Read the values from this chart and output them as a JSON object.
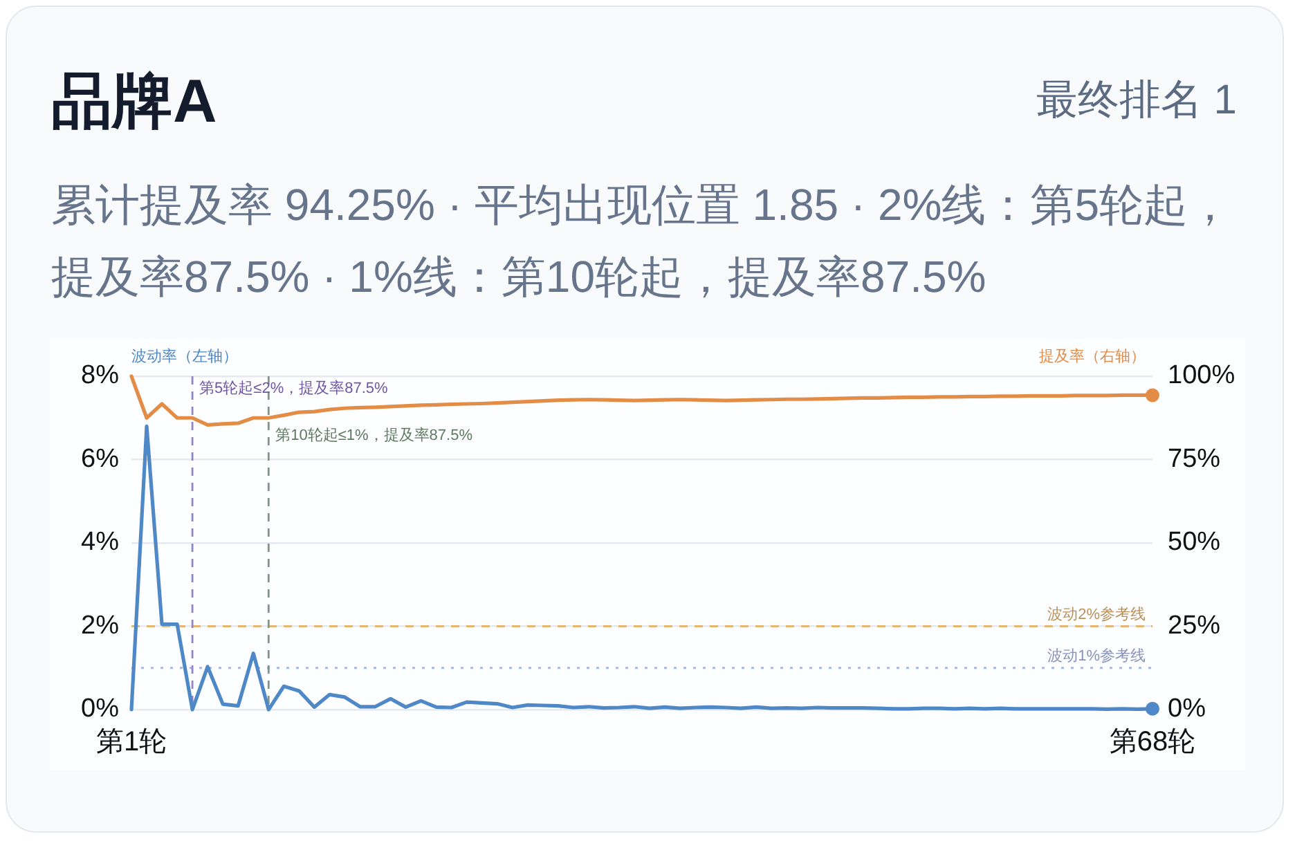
{
  "chart_data": {
    "type": "line",
    "title": "品牌A",
    "subtitle": "累计提及率 94.25% · 平均出现位置 1.85 · 2%线：第5轮起，提及率87.5% · 1%线：第10轮起，提及率87.5%",
    "annotations": [
      "最终排名 1",
      "第5轮起≤2%，提及率87.5%",
      "第10轮起≤1%，提及率87.5%"
    ],
    "ylabel": "波动率（左轴）",
    "y2label": "提及率（右轴）",
    "categories": [
      "第1轮",
      null,
      null,
      null,
      null,
      null,
      null,
      null,
      null,
      null,
      null,
      null,
      null,
      null,
      null,
      null,
      null,
      null,
      null,
      null,
      null,
      null,
      null,
      null,
      null,
      null,
      null,
      null,
      null,
      null,
      null,
      null,
      null,
      null,
      null,
      null,
      null,
      null,
      null,
      null,
      null,
      null,
      null,
      null,
      null,
      null,
      null,
      null,
      null,
      null,
      null,
      null,
      null,
      null,
      null,
      null,
      null,
      null,
      null,
      null,
      null,
      null,
      null,
      null,
      null,
      null,
      null,
      "第68轮"
    ],
    "ylim": [
      0,
      8
    ],
    "yticks": [
      {
        "value": 0,
        "label": "0%"
      },
      {
        "value": 2,
        "label": "2%"
      },
      {
        "value": 4,
        "label": "4%"
      },
      {
        "value": 6,
        "label": "6%"
      },
      {
        "value": 8,
        "label": "8%"
      }
    ],
    "y2lim": [
      0,
      100
    ],
    "y2ticks": [
      {
        "value": 0,
        "label": "0%"
      },
      {
        "value": 25,
        "label": "25%"
      },
      {
        "value": 50,
        "label": "50%"
      },
      {
        "value": 75,
        "label": "75%"
      },
      {
        "value": 100,
        "label": "100%"
      }
    ],
    "grid": "y",
    "series": [
      {
        "color": "#4f88c6",
        "axis": "y",
        "values": [
          0,
          6.8,
          2.05,
          2.05,
          0,
          1.03,
          0.13,
          0.09,
          1.35,
          0,
          0.56,
          0.45,
          0.06,
          0.36,
          0.3,
          0.07,
          0.07,
          0.26,
          0.06,
          0.21,
          0.06,
          0.05,
          0.18,
          0.16,
          0.14,
          0.05,
          0.11,
          0.1,
          0.09,
          0.05,
          0.07,
          0.04,
          0.05,
          0.07,
          0.03,
          0.06,
          0.03,
          0.05,
          0.06,
          0.05,
          0.03,
          0.06,
          0.03,
          0.04,
          0.03,
          0.05,
          0.04,
          0.04,
          0.04,
          0.03,
          0.02,
          0.02,
          0.03,
          0.03,
          0.02,
          0.03,
          0.02,
          0.03,
          0.02,
          0.02,
          0.02,
          0.02,
          0.02,
          0.02,
          0.01,
          0.02,
          0.01,
          0.02
        ]
      },
      {
        "color": "#e38c46",
        "axis": "y2",
        "values": [
          100,
          87.5,
          91.7,
          87.5,
          87.5,
          85.4,
          85.7,
          85.9,
          87.5,
          87.5,
          88.3,
          89.2,
          89.4,
          90.0,
          90.4,
          90.6,
          90.7,
          90.9,
          91.1,
          91.3,
          91.4,
          91.6,
          91.7,
          91.8,
          92.0,
          92.2,
          92.4,
          92.6,
          92.8,
          92.9,
          93.0,
          92.9,
          92.8,
          92.7,
          92.8,
          92.9,
          93.0,
          92.9,
          92.8,
          92.7,
          92.8,
          92.9,
          93.0,
          93.1,
          93.1,
          93.2,
          93.3,
          93.4,
          93.5,
          93.5,
          93.6,
          93.7,
          93.7,
          93.8,
          93.8,
          93.9,
          93.9,
          94.0,
          94.0,
          94.1,
          94.1,
          94.1,
          94.2,
          94.2,
          94.2,
          94.3,
          94.3,
          94.3
        ]
      }
    ],
    "ref_lines": [
      {
        "axis": "y",
        "value": 2,
        "label": "波动2%参考线",
        "color": "#e6b574",
        "line_style": "dashed"
      },
      {
        "axis": "y",
        "value": 1,
        "label": "波动1%参考线",
        "color": "#a9b8e6",
        "line_style": "dotted"
      }
    ]
  }
}
